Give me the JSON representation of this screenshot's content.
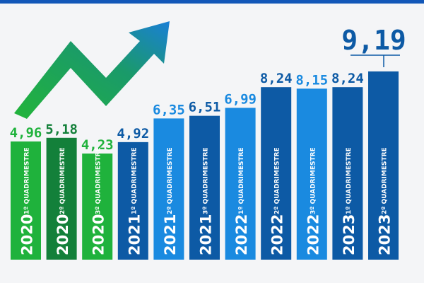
{
  "chart_data": {
    "type": "bar",
    "title": "",
    "xlabel": "",
    "ylabel": "",
    "categories": [
      {
        "year": "2020",
        "period": "1º QUADRIMESTRE"
      },
      {
        "year": "2020",
        "period": "2º QUADRIMESTRE"
      },
      {
        "year": "2020",
        "period": "3º QUADRIMESTRE"
      },
      {
        "year": "2021",
        "period": "1º QUADRIMESTRE"
      },
      {
        "year": "2021",
        "period": "2º QUADRIMESTRE"
      },
      {
        "year": "2021",
        "period": "3º QUADRIMESTRE"
      },
      {
        "year": "2022",
        "period": "1º QUADRIMESTRE"
      },
      {
        "year": "2022",
        "period": "2º QUADRIMESTRE"
      },
      {
        "year": "2022",
        "period": "3º QUADRIMESTRE"
      },
      {
        "year": "2023",
        "period": "1º QUADRIMESTRE"
      },
      {
        "year": "2023",
        "period": "2º QUADRIMESTRE"
      }
    ],
    "values": [
      4.96,
      5.18,
      4.23,
      4.92,
      6.35,
      6.51,
      6.99,
      8.24,
      8.15,
      8.24,
      9.19
    ],
    "value_labels": [
      "4,96",
      "5,18",
      "4,23",
      "4,92",
      "6,35",
      "6,51",
      "6,99",
      "8,24",
      "8,15",
      "8,24",
      "9,19"
    ],
    "bar_colors": [
      "#1fb23c",
      "#13803a",
      "#1fb23c",
      "#0d5aa5",
      "#1a8ae0",
      "#0d5aa5",
      "#1a8ae0",
      "#0d5aa5",
      "#1a8ae0",
      "#0d5aa5",
      "#0d5aa5"
    ],
    "label_colors": [
      "#1fb23c",
      "#13803a",
      "#1fb23c",
      "#0d5aa5",
      "#1a8ae0",
      "#0d5aa5",
      "#1a8ae0",
      "#0d5aa5",
      "#1a8ae0",
      "#0d5aa5",
      "#0d5aa5"
    ],
    "highlight_index": 10,
    "grid": false,
    "legend": "none",
    "decoration": "upward-trend-arrow-icon"
  }
}
